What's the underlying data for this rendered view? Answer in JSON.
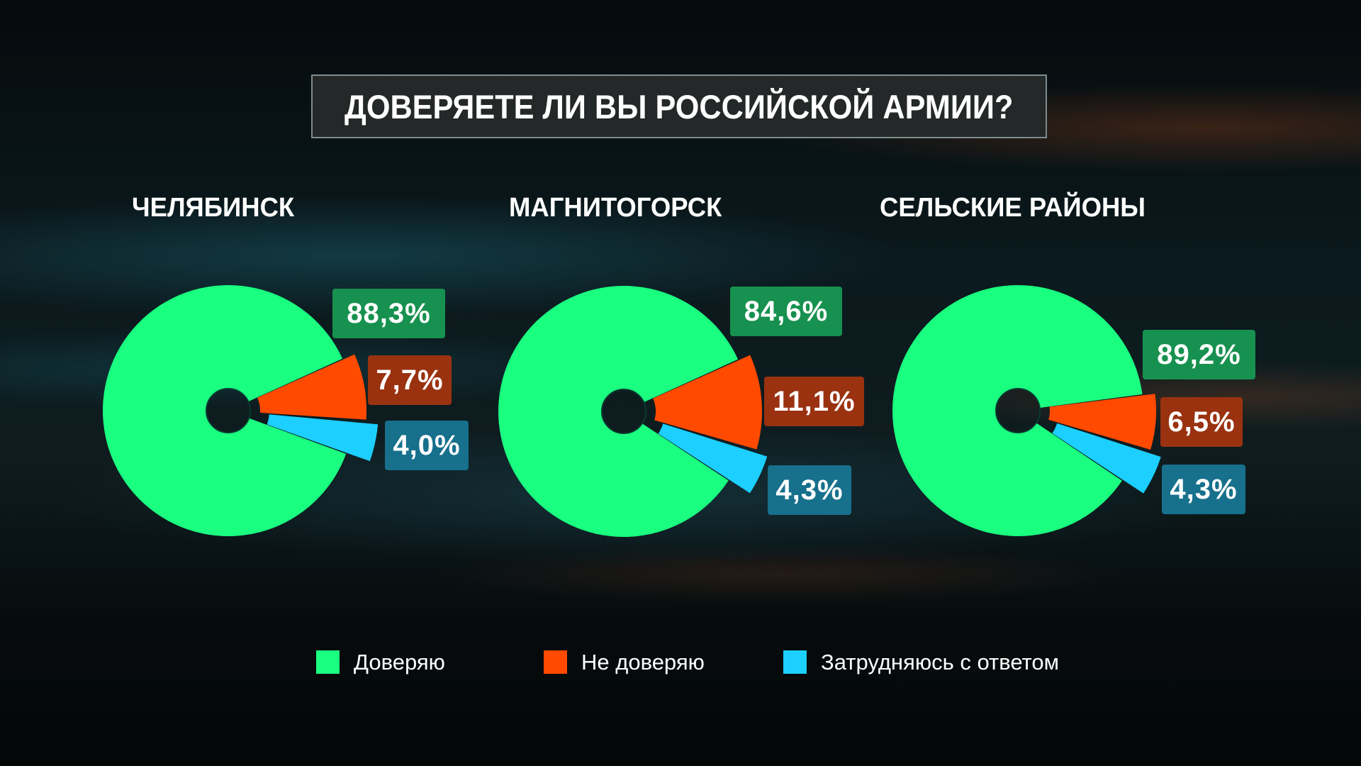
{
  "title": "ДОВЕРЯЕТЕ ЛИ ВЫ РОССИЙСКОЙ АРМИИ?",
  "colors": {
    "trust": "#1aff80",
    "distrust": "#ff4a00",
    "unsure": "#1ccfff",
    "trust_label_bg": "#17914f",
    "distrust_label_bg": "#9a3210",
    "unsure_label_bg": "#17708c"
  },
  "regions": [
    {
      "name": "ЧЕЛЯБИНСК",
      "labels": {
        "trust": "88,3%",
        "distrust": "7,7%",
        "unsure": "4,0%"
      }
    },
    {
      "name": "МАГНИТОГОРСК",
      "labels": {
        "trust": "84,6%",
        "distrust": "11,1%",
        "unsure": "4,3%"
      }
    },
    {
      "name": "СЕЛЬСКИЕ РАЙОНЫ",
      "labels": {
        "trust": "89,2%",
        "distrust": "6,5%",
        "unsure": "4,3%"
      }
    }
  ],
  "legend": [
    {
      "key": "trust",
      "label": "Доверяю",
      "color": "#1aff80"
    },
    {
      "key": "distrust",
      "label": "Не доверяю",
      "color": "#ff4a00"
    },
    {
      "key": "unsure",
      "label": "Затрудняюсь с ответом",
      "color": "#1ccfff"
    }
  ],
  "chart_data": [
    {
      "type": "pie",
      "title": "ЧЕЛЯБИНСК",
      "categories": [
        "Доверяю",
        "Не доверяю",
        "Затрудняюсь с ответом"
      ],
      "values": [
        88.3,
        7.7,
        4.0
      ],
      "unit": "%",
      "style": "donut with exploded minority slices",
      "orange_start_deg": -24
    },
    {
      "type": "pie",
      "title": "МАГНИТОГОРСК",
      "categories": [
        "Доверяю",
        "Не доверяю",
        "Затрудняюсь с ответом"
      ],
      "values": [
        84.6,
        11.1,
        4.3
      ],
      "unit": "%",
      "style": "donut with exploded minority slices",
      "orange_start_deg": -24
    },
    {
      "type": "pie",
      "title": "СЕЛЬСКИЕ РАЙОНЫ",
      "categories": [
        "Доверяю",
        "Не доверяю",
        "Затрудняюсь с ответом"
      ],
      "values": [
        89.2,
        6.5,
        4.3
      ],
      "unit": "%",
      "style": "donut with exploded minority slices",
      "orange_start_deg": -7
    }
  ]
}
